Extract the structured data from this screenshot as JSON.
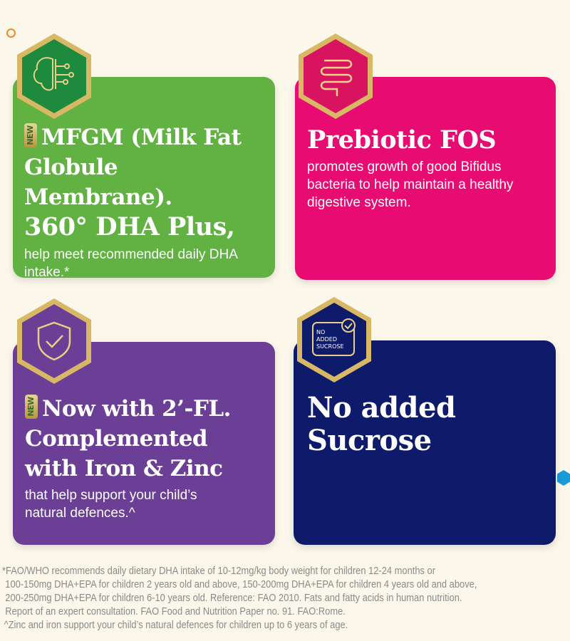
{
  "cards": [
    {
      "title": "MFGM (Milk Fat Globule Membrane). 360° DHA Plus,",
      "title_line1": "MFGM (Milk Fat",
      "title_line2": "Globule Membrane).",
      "title_line3": "360° DHA Plus,",
      "badge": "NEW",
      "body": "help meet recommended daily DHA intake.*",
      "icon": "brain-circuit-icon",
      "color": "#62b143"
    },
    {
      "title": "Prebiotic FOS",
      "body": "promotes growth of good Bifidus bacteria to help maintain a healthy digestive system.",
      "icon": "intestine-icon",
      "color": "#e70b72"
    },
    {
      "title_line1": "Now with 2’-FL.",
      "title_line2": "Complemented",
      "title_line3": "with Iron & Zinc",
      "badge": "NEW",
      "body": "that help support your child’s natural defences.^",
      "icon": "shield-check-icon",
      "color": "#6b3f96"
    },
    {
      "title_line1": "No added",
      "title_line2": "Sucrose",
      "icon": "no-added-sucrose-icon",
      "icon_text": "NO ADDED SUCROSE",
      "color": "#0e1b6b"
    }
  ],
  "footnotes": [
    "*FAO/WHO recommends daily dietary DHA intake of 10-12mg/kg body weight for children 12-24 months or",
    "100-150mg DHA+EPA for children 2 years old and above, 150-200mg DHA+EPA for children 4 years old and above,",
    "200-250mg DHA+EPA for children 6-10 years old. Reference: FAO 2010. Fats and fatty acids in human nutrition.",
    "Report of an expert consultation. FAO Food and Nutrition Paper no. 91. FAO:Rome.",
    "^Zinc and iron support your child’s natural defences for children up to 6 years of age."
  ]
}
